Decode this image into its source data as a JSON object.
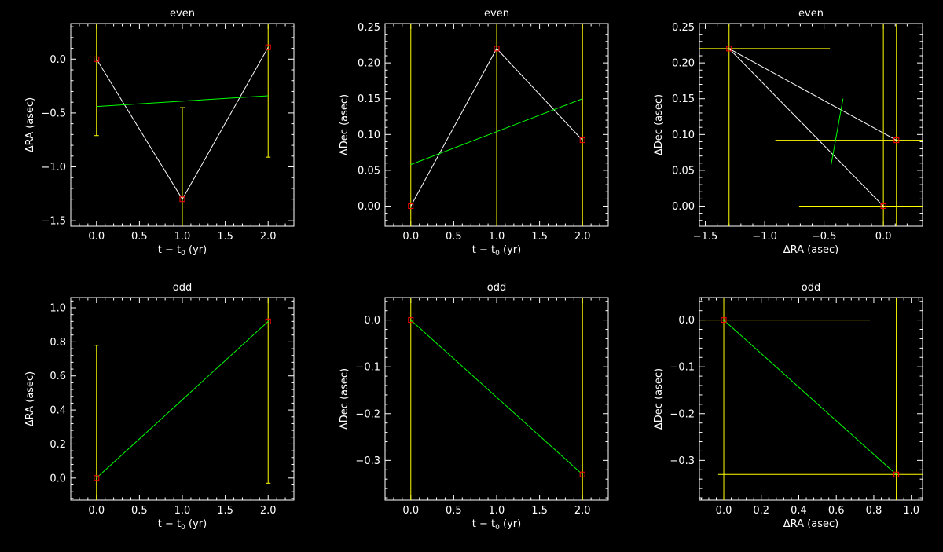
{
  "colors": {
    "background": "#000000",
    "axes": "#ffffff",
    "data_line": "#ffffff",
    "fit_line": "#00ff00",
    "error_bar": "#ffff00",
    "marker": "#ff0000"
  },
  "chart_data": [
    {
      "type": "line",
      "title": "even",
      "xlabel": "t − t",
      "xlabel_sub": "0",
      "xlabel_suffix": " (yr)",
      "ylabel": "ΔRA (asec)",
      "xlim": [
        -0.3,
        2.3
      ],
      "ylim": [
        -1.55,
        0.33
      ],
      "xticks": [
        0.0,
        0.5,
        1.0,
        1.5,
        2.0
      ],
      "xtick_labels": [
        "0.0",
        "0.5",
        "1.0",
        "1.5",
        "2.0"
      ],
      "yticks": [
        -1.5,
        -1.0,
        -0.5,
        0.0
      ],
      "ytick_labels": [
        "−1.5",
        "−1.0",
        "−0.5",
        "0.0"
      ],
      "points": [
        {
          "x": 0,
          "y": 0.0
        },
        {
          "x": 1,
          "y": -1.3
        },
        {
          "x": 2,
          "y": 0.11
        }
      ],
      "yerr": [
        [
          -0.71,
          0.33
        ],
        [
          -1.55,
          -0.45
        ],
        [
          -0.91,
          0.33
        ]
      ],
      "fit": [
        {
          "x": 0,
          "y": -0.44
        },
        {
          "x": 2,
          "y": -0.34
        }
      ]
    },
    {
      "type": "line",
      "title": "even",
      "xlabel": "t − t",
      "xlabel_sub": "0",
      "xlabel_suffix": " (yr)",
      "ylabel": "ΔDec (asec)",
      "xlim": [
        -0.3,
        2.3
      ],
      "ylim": [
        -0.028,
        0.255
      ],
      "xticks": [
        0.0,
        0.5,
        1.0,
        1.5,
        2.0
      ],
      "xtick_labels": [
        "0.0",
        "0.5",
        "1.0",
        "1.5",
        "2.0"
      ],
      "yticks": [
        0.0,
        0.05,
        0.1,
        0.15,
        0.2,
        0.25
      ],
      "ytick_labels": [
        "0.00",
        "0.05",
        "0.10",
        "0.15",
        "0.20",
        "0.25"
      ],
      "points": [
        {
          "x": 0,
          "y": 0.0
        },
        {
          "x": 1,
          "y": 0.22
        },
        {
          "x": 2,
          "y": 0.092
        }
      ],
      "yerr": [
        [
          -0.028,
          0.255
        ],
        [
          -0.028,
          0.255
        ],
        [
          -0.028,
          0.255
        ]
      ],
      "fit": [
        {
          "x": 0,
          "y": 0.058
        },
        {
          "x": 2,
          "y": 0.15
        }
      ]
    },
    {
      "type": "scatter",
      "title": "even",
      "xlabel": "ΔRA (asec)",
      "ylabel": "ΔDec (asec)",
      "xlim": [
        -1.55,
        0.33
      ],
      "ylim": [
        -0.028,
        0.255
      ],
      "xticks": [
        -1.5,
        -1.0,
        -0.5,
        0.0
      ],
      "xtick_labels": [
        "−1.5",
        "−1.0",
        "−0.5",
        "0.0"
      ],
      "yticks": [
        0.0,
        0.05,
        0.1,
        0.15,
        0.2,
        0.25
      ],
      "ytick_labels": [
        "0.00",
        "0.05",
        "0.10",
        "0.15",
        "0.20",
        "0.25"
      ],
      "points": [
        {
          "x": -1.3,
          "y": 0.22
        },
        {
          "x": 0.11,
          "y": 0.092
        },
        {
          "x": 0.0,
          "y": 0.0
        }
      ],
      "polylines": [
        [
          {
            "x": -1.3,
            "y": 0.22
          },
          {
            "x": 0.11,
            "y": 0.092
          }
        ],
        [
          {
            "x": -1.3,
            "y": 0.22
          },
          {
            "x": 0.0,
            "y": 0.0
          }
        ]
      ],
      "xerr": [
        [
          -1.55,
          -0.45
        ],
        [
          -0.91,
          0.33
        ],
        [
          -0.71,
          0.33
        ]
      ],
      "yerr": [
        [
          -0.028,
          0.255
        ],
        [
          -0.028,
          0.255
        ],
        [
          -0.028,
          0.255
        ]
      ],
      "fit": [
        {
          "x": -0.44,
          "y": 0.058
        },
        {
          "x": -0.34,
          "y": 0.15
        }
      ]
    },
    {
      "type": "line",
      "title": "odd",
      "xlabel": "t − t",
      "xlabel_sub": "0",
      "xlabel_suffix": " (yr)",
      "ylabel": "ΔRA (asec)",
      "xlim": [
        -0.3,
        2.3
      ],
      "ylim": [
        -0.13,
        1.06
      ],
      "xticks": [
        0.0,
        0.5,
        1.0,
        1.5,
        2.0
      ],
      "xtick_labels": [
        "0.0",
        "0.5",
        "1.0",
        "1.5",
        "2.0"
      ],
      "yticks": [
        0.0,
        0.2,
        0.4,
        0.6,
        0.8,
        1.0
      ],
      "ytick_labels": [
        "0.0",
        "0.2",
        "0.4",
        "0.6",
        "0.8",
        "1.0"
      ],
      "points": [
        {
          "x": 0,
          "y": 0.0
        },
        {
          "x": 2,
          "y": 0.92
        }
      ],
      "yerr": [
        [
          -0.13,
          0.78
        ],
        [
          -0.03,
          1.06
        ]
      ],
      "fit": [
        {
          "x": 0,
          "y": 0.0
        },
        {
          "x": 2,
          "y": 0.92
        }
      ]
    },
    {
      "type": "line",
      "title": "odd",
      "xlabel": "t − t",
      "xlabel_sub": "0",
      "xlabel_suffix": " (yr)",
      "ylabel": "ΔDec (asec)",
      "xlim": [
        -0.3,
        2.3
      ],
      "ylim": [
        -0.385,
        0.048
      ],
      "xticks": [
        0.0,
        0.5,
        1.0,
        1.5,
        2.0
      ],
      "xtick_labels": [
        "0.0",
        "0.5",
        "1.0",
        "1.5",
        "2.0"
      ],
      "yticks": [
        -0.3,
        -0.2,
        -0.1,
        0.0
      ],
      "ytick_labels": [
        "−0.3",
        "−0.2",
        "−0.1",
        "0.0"
      ],
      "points": [
        {
          "x": 0,
          "y": 0.0
        },
        {
          "x": 2,
          "y": -0.33
        }
      ],
      "yerr": [
        [
          -0.385,
          0.048
        ],
        [
          -0.385,
          0.048
        ]
      ],
      "fit": [
        {
          "x": 0,
          "y": 0.0
        },
        {
          "x": 2,
          "y": -0.33
        }
      ]
    },
    {
      "type": "scatter",
      "title": "odd",
      "xlabel": "ΔRA (asec)",
      "ylabel": "ΔDec (asec)",
      "xlim": [
        -0.13,
        1.06
      ],
      "ylim": [
        -0.385,
        0.048
      ],
      "xticks": [
        0.0,
        0.2,
        0.4,
        0.6,
        0.8,
        1.0
      ],
      "xtick_labels": [
        "0.0",
        "0.2",
        "0.4",
        "0.6",
        "0.8",
        "1.0"
      ],
      "yticks": [
        -0.3,
        -0.2,
        -0.1,
        0.0
      ],
      "ytick_labels": [
        "−0.3",
        "−0.2",
        "−0.1",
        "0.0"
      ],
      "points": [
        {
          "x": 0.0,
          "y": 0.0
        },
        {
          "x": 0.92,
          "y": -0.33
        }
      ],
      "xerr": [
        [
          -0.13,
          0.78
        ],
        [
          -0.03,
          1.06
        ]
      ],
      "yerr": [
        [
          -0.385,
          0.048
        ],
        [
          -0.385,
          0.048
        ]
      ],
      "fit": [
        {
          "x": 0.0,
          "y": 0.0
        },
        {
          "x": 0.92,
          "y": -0.33
        }
      ]
    }
  ]
}
